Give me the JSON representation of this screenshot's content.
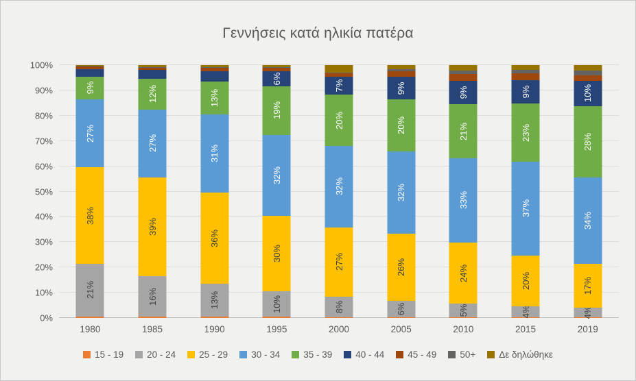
{
  "frame": {
    "background": "#f1f1f0",
    "border_color": "#c9c9c9"
  },
  "chart_data": {
    "type": "bar",
    "stacked": true,
    "percent_stacked": true,
    "title": "Γεννήσεις κατά ηλικία πατέρα",
    "xlabel": "",
    "ylabel": "",
    "ylim": [
      0,
      100
    ],
    "grid": true,
    "gridline_color": "#dcdcdc",
    "axis_line_color": "#bfbfbf",
    "axis_text_color": "#595959",
    "title_color": "#595959",
    "legend_position": "bottom",
    "y_ticks": [
      "0%",
      "10%",
      "20%",
      "30%",
      "40%",
      "50%",
      "60%",
      "70%",
      "80%",
      "90%",
      "100%"
    ],
    "categories": [
      "1980",
      "1985",
      "1990",
      "1995",
      "2000",
      "2005",
      "2010",
      "2015",
      "2019"
    ],
    "series": [
      {
        "name": "15 - 19",
        "color": "#ED7D31",
        "label_color": "#404040",
        "values": [
          0.5,
          0.5,
          0.5,
          0.5,
          0.4,
          0.4,
          0.3,
          0.3,
          0.2
        ],
        "labels": [
          null,
          null,
          null,
          null,
          null,
          null,
          null,
          null,
          null
        ]
      },
      {
        "name": "20 - 24",
        "color": "#A5A5A5",
        "label_color": "#404040",
        "values": [
          21,
          16,
          13,
          10,
          8,
          6.4,
          5.3,
          4.2,
          4
        ],
        "labels": [
          "21%",
          "16%",
          "13%",
          "10%",
          "8%",
          "6%",
          "5%",
          "4%",
          "4%"
        ]
      },
      {
        "name": "25 - 29",
        "color": "#FFC000",
        "label_color": "#404040",
        "values": [
          38,
          39,
          36,
          30,
          27,
          26.4,
          24.3,
          20.3,
          17.2
        ],
        "labels": [
          "38%",
          "39%",
          "36%",
          "30%",
          "27%",
          "26%",
          "24%",
          "20%",
          "17%"
        ]
      },
      {
        "name": "30 - 34",
        "color": "#5B9BD5",
        "label_color": "#FFFFFF",
        "values": [
          27,
          27,
          31,
          32,
          32,
          32.4,
          33.3,
          37,
          34.2
        ],
        "labels": [
          "27%",
          "27%",
          "31%",
          "32%",
          "32%",
          "32%",
          "33%",
          "37%",
          "34%"
        ]
      },
      {
        "name": "35 - 39",
        "color": "#70AD47",
        "label_color": "#FFFFFF",
        "values": [
          9,
          12,
          13,
          19,
          20,
          20.4,
          21.3,
          23,
          28.2
        ],
        "labels": [
          "9%",
          "12%",
          "13%",
          "19%",
          "20%",
          "20%",
          "21%",
          "23%",
          "28%"
        ]
      },
      {
        "name": "40 - 44",
        "color": "#264478",
        "label_color": "#FFFFFF",
        "values": [
          3,
          3.5,
          4.2,
          6,
          7,
          9,
          9.2,
          9.2,
          10
        ],
        "labels": [
          null,
          null,
          null,
          "6%",
          "7%",
          "9%",
          "9%",
          "9%",
          "10%"
        ]
      },
      {
        "name": "45 - 49",
        "color": "#9E480E",
        "label_color": "#FFFFFF",
        "values": [
          1,
          1,
          1.2,
          1.4,
          1.4,
          2.2,
          2.8,
          2.9,
          2.2
        ],
        "labels": [
          null,
          null,
          null,
          null,
          null,
          null,
          null,
          null,
          null
        ]
      },
      {
        "name": "50+",
        "color": "#636363",
        "label_color": "#FFFFFF",
        "values": [
          0.2,
          0.3,
          0.3,
          0.3,
          0.2,
          0.8,
          1.3,
          1.3,
          1.8
        ],
        "labels": [
          null,
          null,
          null,
          null,
          null,
          null,
          null,
          null,
          null
        ]
      },
      {
        "name": "Δε δηλώθηκε",
        "color": "#997300",
        "label_color": "#FFFFFF",
        "values": [
          0.3,
          0.7,
          0.8,
          0.8,
          3.0,
          1.6,
          2.2,
          1.8,
          2.2
        ],
        "labels": [
          null,
          null,
          null,
          null,
          null,
          null,
          null,
          null,
          null
        ]
      }
    ]
  }
}
